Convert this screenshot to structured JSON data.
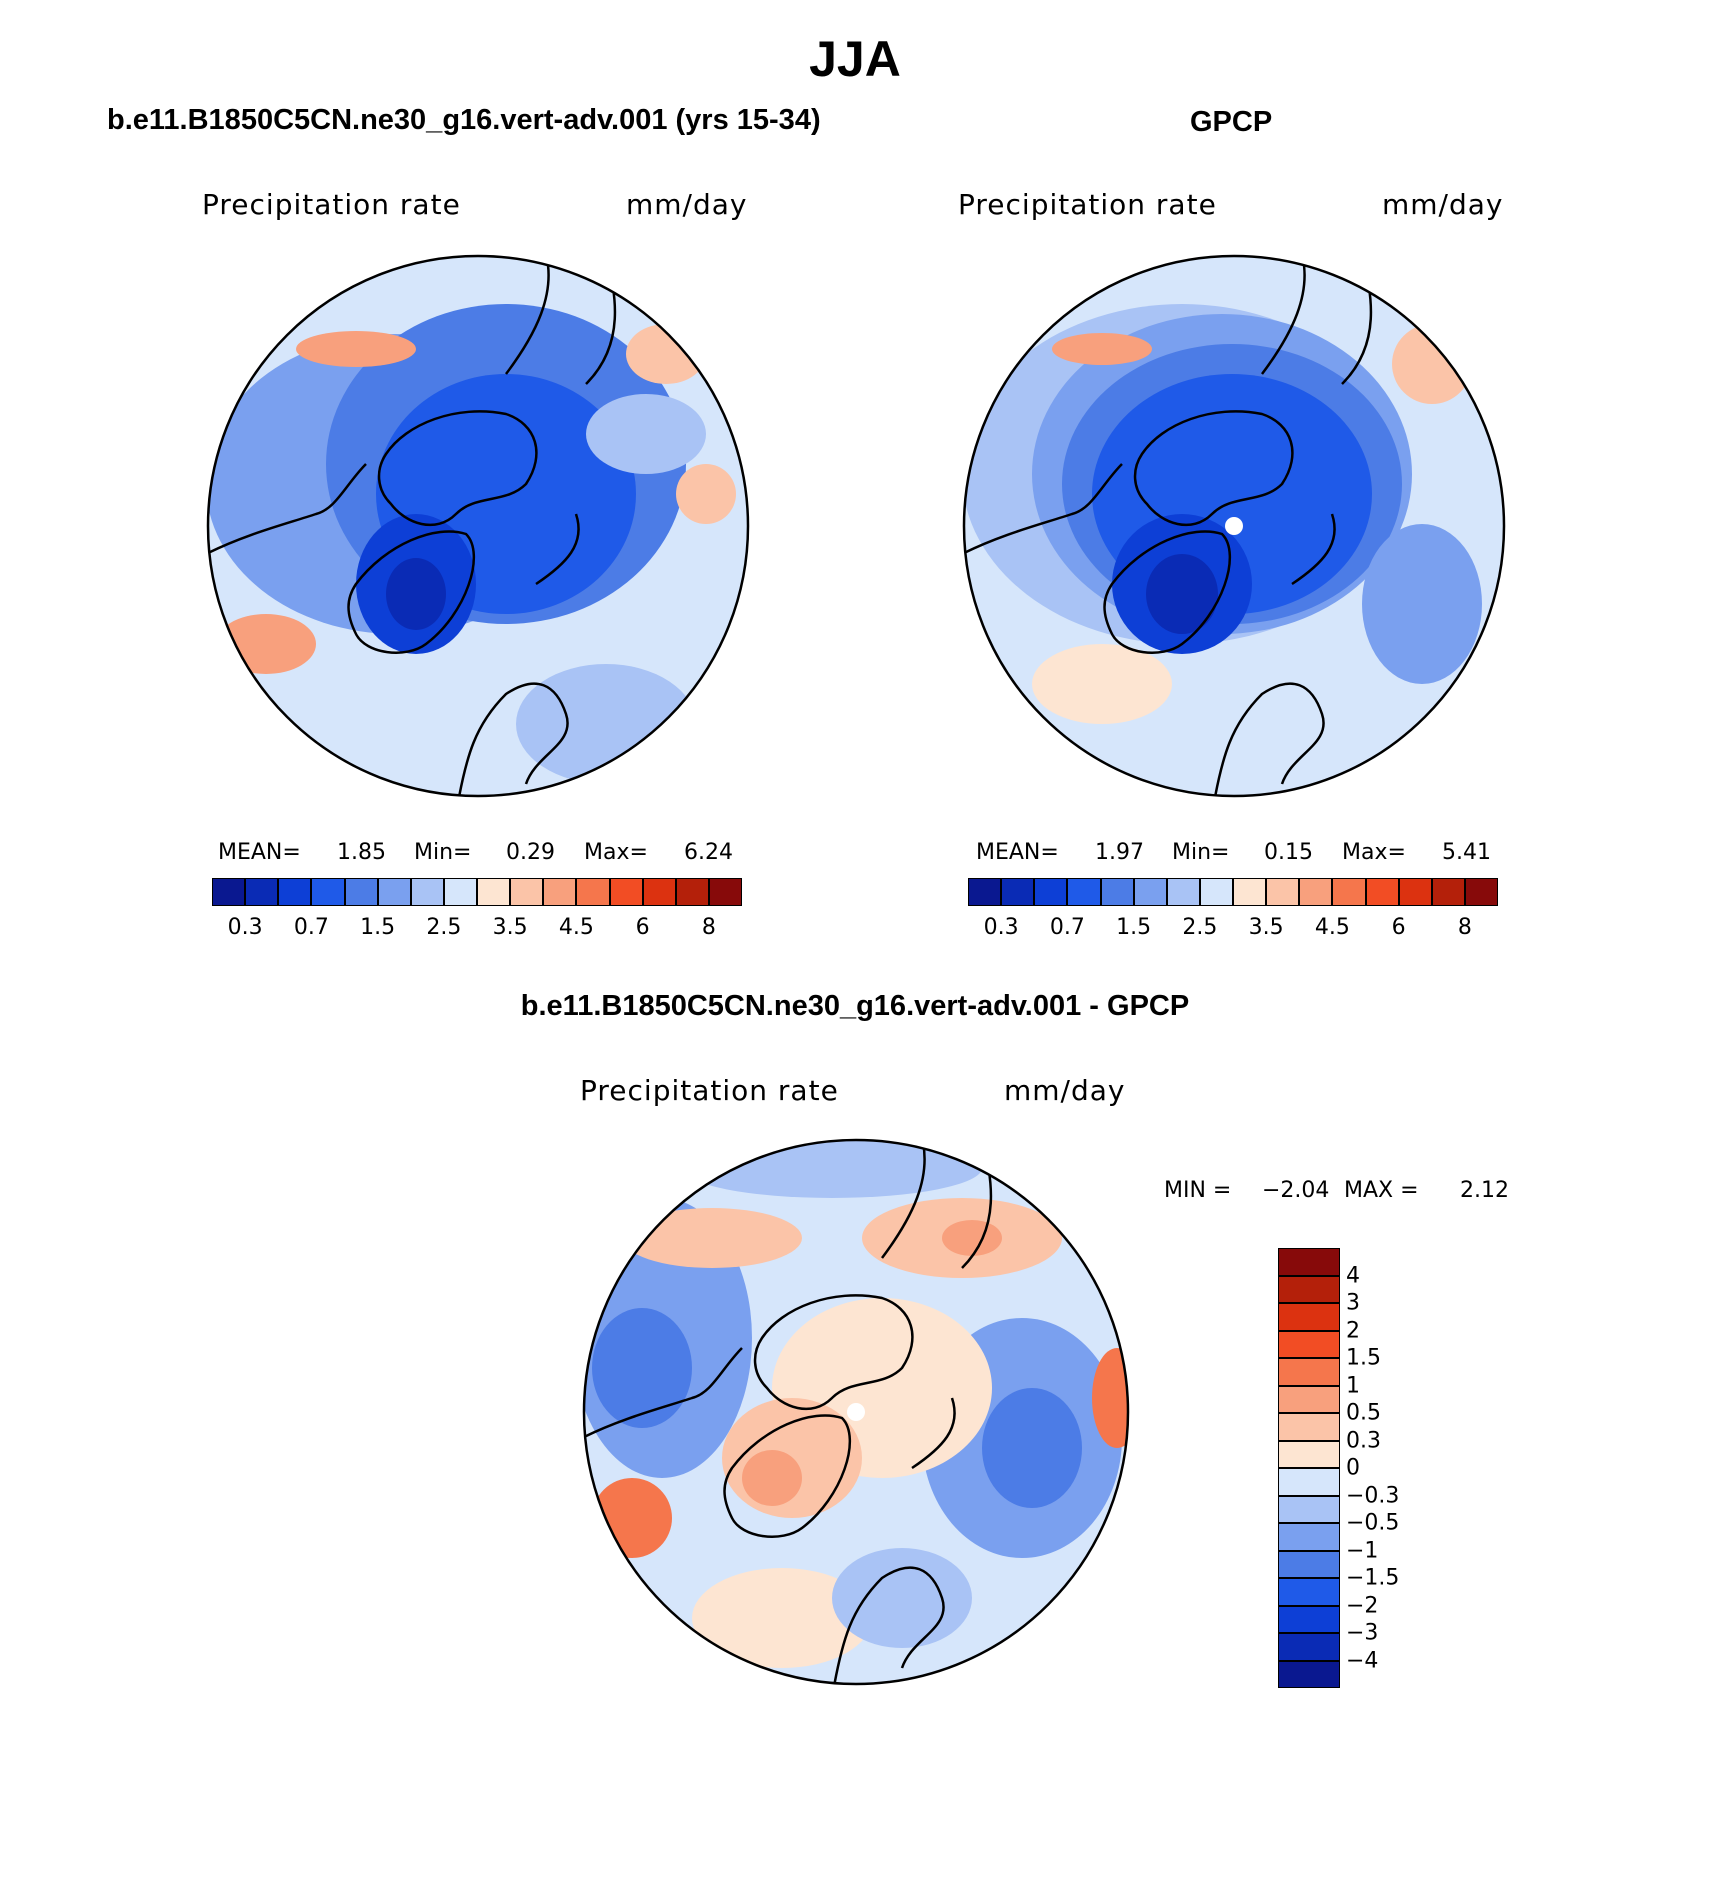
{
  "title": "JJA",
  "panels": [
    {
      "id": "model",
      "title": "b.e11.B1850C5CN.ne30_g16.vert-adv.001 (yrs 15-34)",
      "variable": "Precipitation  rate",
      "units": "mm/day",
      "stats": {
        "mean_label": "MEAN=",
        "mean": "1.85",
        "min_label": "Min=",
        "min": "0.29",
        "max_label": "Max=",
        "max": "6.24"
      }
    },
    {
      "id": "obs",
      "title": "GPCP",
      "variable": "Precipitation  rate",
      "units": "mm/day",
      "stats": {
        "mean_label": "MEAN=",
        "mean": "1.97",
        "min_label": "Min=",
        "min": "0.15",
        "max_label": "Max=",
        "max": "5.41"
      }
    },
    {
      "id": "diff",
      "title": "b.e11.B1850C5CN.ne30_g16.vert-adv.001 - GPCP",
      "variable": "Precipitation  rate",
      "units": "mm/day",
      "stats": {
        "min_label": "MIN =",
        "min": "−2.04",
        "max_label": "MAX =",
        "max": "2.12"
      }
    }
  ],
  "colorbar_abs": {
    "colors": [
      "#0a1890",
      "#0a2bb5",
      "#0d3fd6",
      "#1f5ae8",
      "#4c7ce6",
      "#7aa0ef",
      "#a9c3f5",
      "#d6e6fb",
      "#fde5d2",
      "#fbc4a8",
      "#f8a07d",
      "#f5764c",
      "#f24d24",
      "#dc3210",
      "#b4200a",
      "#870a0a"
    ],
    "labels": [
      "0.3",
      "0.7",
      "1.5",
      "2.5",
      "3.5",
      "4.5",
      "6",
      "8"
    ]
  },
  "colorbar_diff": {
    "colors": [
      "#870a0a",
      "#b4200a",
      "#dc3210",
      "#f24d24",
      "#f5764c",
      "#f8a07d",
      "#fbc4a8",
      "#fde5d2",
      "#d6e6fb",
      "#a9c3f5",
      "#7aa0ef",
      "#4c7ce6",
      "#1f5ae8",
      "#0d3fd6",
      "#0a2bb5",
      "#0a1890"
    ],
    "labels": [
      "4",
      "3",
      "2",
      "1.5",
      "1",
      "0.5",
      "0.3",
      "0",
      "−0.3",
      "−0.5",
      "−1",
      "−1.5",
      "−2",
      "−3",
      "−4"
    ]
  }
}
